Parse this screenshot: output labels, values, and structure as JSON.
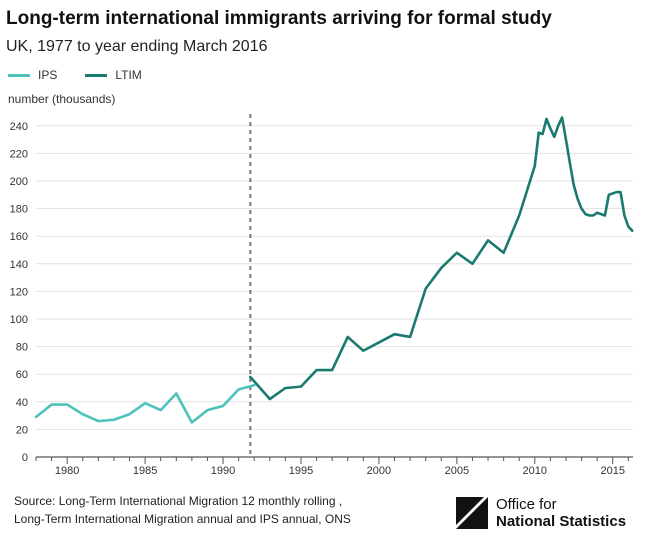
{
  "header": {
    "title": "Long-term international immigrants arriving for formal study",
    "subtitle": "UK, 1977 to year ending March 2016"
  },
  "colors": {
    "ips": "#4cc2bb",
    "ltim": "#1a7a6f",
    "divider": "#777777",
    "grid": "#e2e2e2",
    "axis": "#555555"
  },
  "footer": {
    "source_line1": "Source: Long-Term International Migration 12 monthly rolling ,",
    "source_line2": "Long-Term International Migration annual and IPS annual, ONS",
    "logo_line1": "Office for",
    "logo_line2": "National Statistics"
  },
  "chart_data": {
    "type": "line",
    "title": "Long-term international immigrants arriving for formal study",
    "subtitle": "UK, 1977 to year ending March 2016",
    "ylabel": "number (thousands)",
    "xlabel": "",
    "ylim": [
      0,
      250
    ],
    "xlim": [
      1978,
      2016.3
    ],
    "y_ticks": [
      0,
      20,
      40,
      60,
      80,
      100,
      120,
      140,
      160,
      180,
      200,
      220,
      240
    ],
    "x_ticks": [
      1980,
      1985,
      1990,
      1995,
      2000,
      2005,
      2010,
      2015
    ],
    "grid": true,
    "legend_position": "top-left",
    "divider_x": 1991.75,
    "series": [
      {
        "name": "IPS",
        "color": "#4cc2bb",
        "points": [
          [
            1978,
            29
          ],
          [
            1979,
            38
          ],
          [
            1980,
            38
          ],
          [
            1981,
            31
          ],
          [
            1982,
            26
          ],
          [
            1983,
            27
          ],
          [
            1984,
            31
          ],
          [
            1985,
            39
          ],
          [
            1986,
            34
          ],
          [
            1987,
            46
          ],
          [
            1988,
            25
          ],
          [
            1989,
            34
          ],
          [
            1990,
            37
          ],
          [
            1991,
            49
          ],
          [
            1992,
            52
          ]
        ]
      },
      {
        "name": "LTIM",
        "color": "#1a7a6f",
        "points": [
          [
            1991.75,
            58
          ],
          [
            1993,
            42
          ],
          [
            1994,
            50
          ],
          [
            1995,
            51
          ],
          [
            1996,
            63
          ],
          [
            1997,
            63
          ],
          [
            1998,
            87
          ],
          [
            1999,
            77
          ],
          [
            2000,
            83
          ],
          [
            2001,
            89
          ],
          [
            2002,
            87
          ],
          [
            2003,
            122
          ],
          [
            2004,
            137
          ],
          [
            2005,
            148
          ],
          [
            2006,
            140
          ],
          [
            2007,
            157
          ],
          [
            2008,
            148
          ],
          [
            2009,
            175
          ],
          [
            2010,
            211
          ],
          [
            2010.25,
            235
          ],
          [
            2010.5,
            234
          ],
          [
            2010.75,
            245
          ],
          [
            2011,
            238
          ],
          [
            2011.25,
            232
          ],
          [
            2011.5,
            240
          ],
          [
            2011.75,
            246
          ],
          [
            2012,
            230
          ],
          [
            2012.25,
            213
          ],
          [
            2012.5,
            197
          ],
          [
            2012.75,
            187
          ],
          [
            2013,
            180
          ],
          [
            2013.25,
            176
          ],
          [
            2013.5,
            175
          ],
          [
            2013.75,
            175
          ],
          [
            2014,
            177
          ],
          [
            2014.25,
            176
          ],
          [
            2014.5,
            175
          ],
          [
            2014.75,
            190
          ],
          [
            2015,
            191
          ],
          [
            2015.25,
            192
          ],
          [
            2015.5,
            192
          ],
          [
            2015.75,
            175
          ],
          [
            2016,
            167
          ],
          [
            2016.25,
            164
          ]
        ]
      }
    ]
  }
}
